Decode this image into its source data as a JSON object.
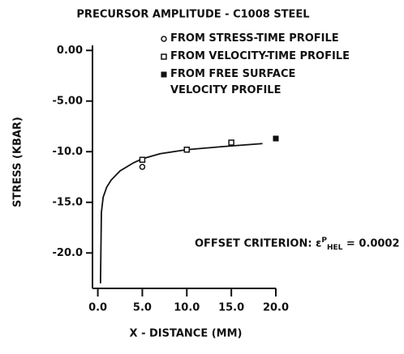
{
  "chart_data": {
    "type": "scatter",
    "title": "PRECURSOR AMPLITUDE - C1008 STEEL",
    "x_label": "X - DISTANCE (MM)",
    "y_label": "STRESS (KBAR)",
    "xlim": [
      -0.6,
      20
    ],
    "ylim": [
      -23.5,
      0.5
    ],
    "xticks": [
      {
        "value": 0,
        "label": "0.0"
      },
      {
        "value": 5,
        "label": "5.0"
      },
      {
        "value": 10,
        "label": "10.0"
      },
      {
        "value": 15,
        "label": "15.0"
      },
      {
        "value": 20,
        "label": "20.0"
      }
    ],
    "yticks": [
      {
        "value": 0,
        "label": "0.00"
      },
      {
        "value": -5,
        "label": "-5.00"
      },
      {
        "value": -10,
        "label": "-10.0"
      },
      {
        "value": -15,
        "label": "-15.0"
      },
      {
        "value": -20,
        "label": "-20.0"
      }
    ],
    "series": [
      {
        "name": "FROM STRESS-TIME PROFILE",
        "marker": "open-circle",
        "color": "#111111",
        "x": [
          5
        ],
        "values": [
          -11.5
        ]
      },
      {
        "name": "FROM VELOCITY-TIME PROFILE",
        "marker": "open-square",
        "color": "#111111",
        "x": [
          5,
          10,
          15
        ],
        "values": [
          -10.8,
          -9.8,
          -9.1
        ]
      },
      {
        "name": "FROM FREE SURFACE VELOCITY PROFILE",
        "marker": "filled-square",
        "color": "#111111",
        "x": [
          20
        ],
        "values": [
          -8.7
        ]
      }
    ],
    "fit": {
      "color": "#111111",
      "x": [
        0.3,
        0.4,
        0.6,
        1,
        1.5,
        2.5,
        4,
        5,
        7,
        10,
        14,
        18.5
      ],
      "values": [
        -23,
        -16,
        -14.5,
        -13.5,
        -12.8,
        -11.9,
        -11.1,
        -10.7,
        -10.2,
        -9.8,
        -9.5,
        -9.2
      ]
    },
    "annotation": {
      "text": "OFFSET CRITERION:",
      "symbol": "ε",
      "sup": "P",
      "sub": "HEL",
      "relation": "=",
      "value": 0.0002
    }
  }
}
